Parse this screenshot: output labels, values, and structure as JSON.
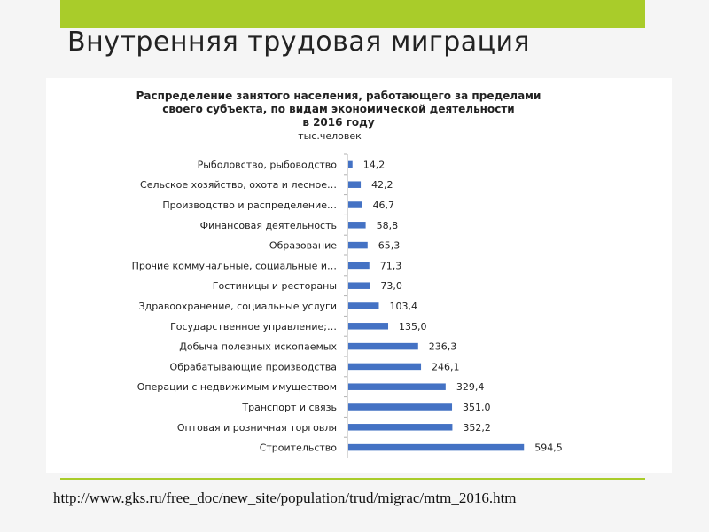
{
  "slide": {
    "title": "Внутренняя трудовая миграция",
    "source": "http://www.gks.ru/free_doc/new_site/population/trud/migrac/mtm_2016.htm",
    "accent_color": "#a9cc2a"
  },
  "chart_data": {
    "type": "bar",
    "orientation": "horizontal",
    "title_lines": [
      "Распределение занятого населения, работающего за пределами",
      "своего субъекта, по видам экономической деятельности",
      "в 2016 году"
    ],
    "subtitle": "тыс.человек",
    "bar_color": "#4472c4",
    "categories": [
      "Рыболовство, рыбоводство",
      "Сельское хозяйство, охота и лесное…",
      "Производство и распределение…",
      "Финансовая деятельность",
      "Образование",
      "Прочие коммунальные, социальные и…",
      "Гостиницы и рестораны",
      "Здравоохранение, социальные услуги",
      "Государственное управление;…",
      "Добыча полезных ископаемых",
      "Обрабатывающие производства",
      "Операции с недвижимым имуществом",
      "Транспорт и связь",
      "Оптовая и розничная торговля",
      "Строительство"
    ],
    "values": [
      14.2,
      42.2,
      46.7,
      58.8,
      65.3,
      71.3,
      73.0,
      103.4,
      135.0,
      236.3,
      246.1,
      329.4,
      351.0,
      352.2,
      594.5
    ],
    "value_labels": [
      "14,2",
      "42,2",
      "46,7",
      "58,8",
      "65,3",
      "71,3",
      "73,0",
      "103,4",
      "135,0",
      "236,3",
      "246,1",
      "329,4",
      "351,0",
      "352,2",
      "594,5"
    ],
    "xlim": [
      0,
      620
    ],
    "grid": false,
    "legend": "none"
  }
}
